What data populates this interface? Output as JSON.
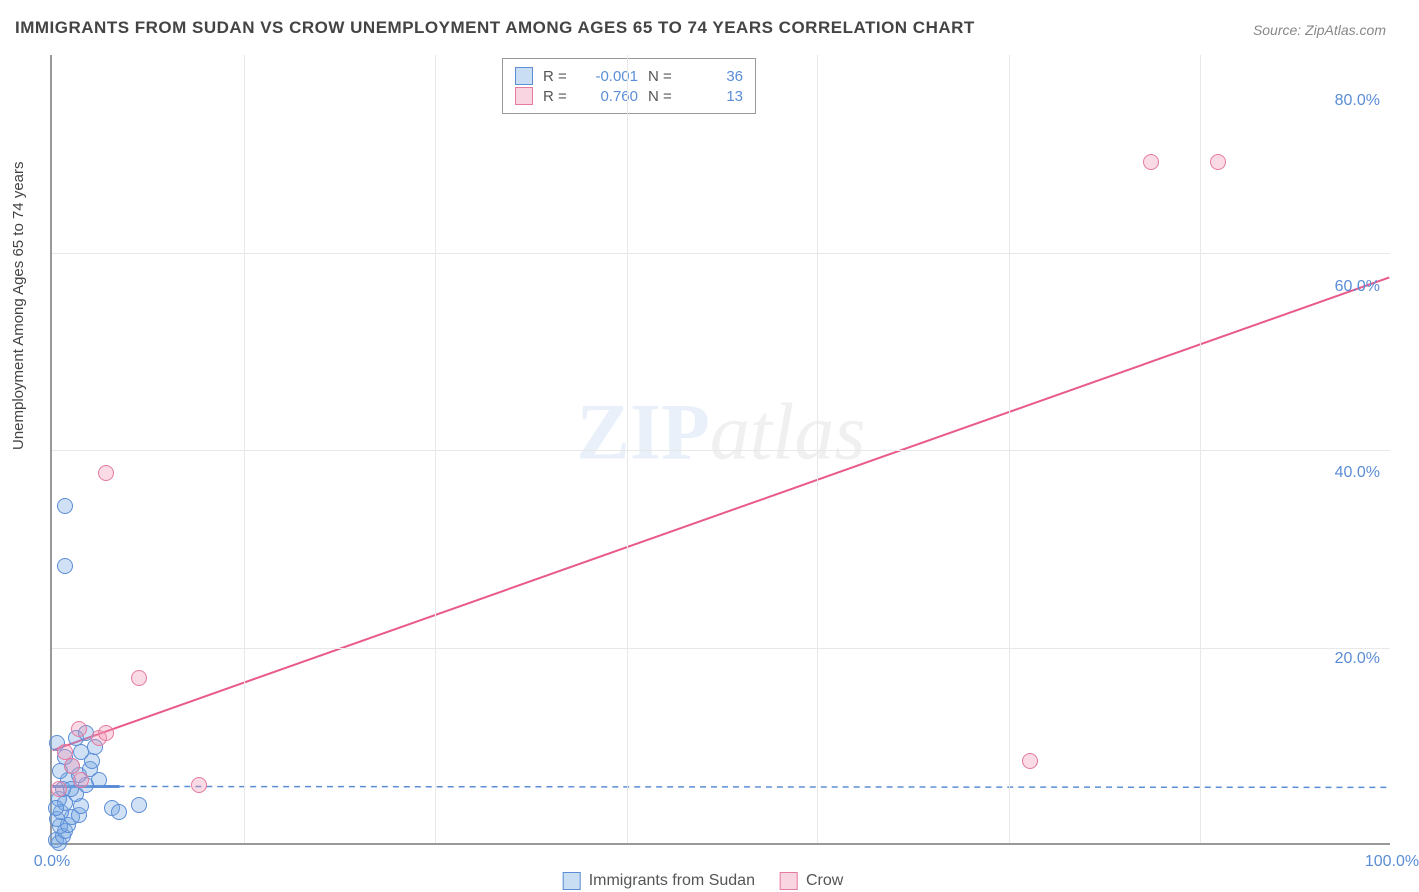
{
  "title": "IMMIGRANTS FROM SUDAN VS CROW UNEMPLOYMENT AMONG AGES 65 TO 74 YEARS CORRELATION CHART",
  "source_label": "Source: ZipAtlas.com",
  "ylabel": "Unemployment Among Ages 65 to 74 years",
  "watermark": {
    "part1": "ZIP",
    "part2": "atlas"
  },
  "chart": {
    "type": "scatter",
    "background_color": "#ffffff",
    "grid_color": "#e8e8e8",
    "axis_color": "#999999",
    "tick_label_color": "#5b8dd6",
    "tick_fontsize": 16,
    "xlim": [
      0,
      100
    ],
    "ylim": [
      0,
      85
    ],
    "xticks": [
      0,
      100
    ],
    "xtick_labels": [
      "0.0%",
      "100.0%"
    ],
    "yticks": [
      20,
      40,
      60,
      80
    ],
    "ytick_labels": [
      "20.0%",
      "40.0%",
      "60.0%",
      "80.0%"
    ],
    "x_gridlines_minor": [
      14.3,
      28.6,
      42.9,
      57.1,
      71.4,
      85.7
    ],
    "y_gridlines": [
      21.25,
      42.5,
      63.75
    ]
  },
  "legend_top": {
    "rows": [
      {
        "swatch": "blue",
        "r_label": "R =",
        "r_value": "-0.001",
        "n_label": "N =",
        "n_value": "36"
      },
      {
        "swatch": "pink",
        "r_label": "R =",
        "r_value": "0.760",
        "n_label": "N =",
        "n_value": "13"
      }
    ]
  },
  "legend_bottom": {
    "items": [
      {
        "swatch": "blue",
        "label": "Immigrants from Sudan"
      },
      {
        "swatch": "pink",
        "label": "Crow"
      }
    ]
  },
  "series": [
    {
      "name": "Immigrants from Sudan",
      "color_fill": "rgba(120,170,225,0.35)",
      "color_stroke": "#5b8dd6",
      "marker_size": 16,
      "regression": {
        "type": "dashed",
        "color": "#5b8dd6",
        "width": 1.5,
        "dash": "6 5",
        "x1": 0,
        "y1": 6.1,
        "x2": 100,
        "y2": 6.0,
        "solid_segment": {
          "x1": 0,
          "y1": 6.1,
          "x2": 5,
          "y2": 6.1
        }
      },
      "points": [
        {
          "x": 0.3,
          "y": 0.5
        },
        {
          "x": 0.5,
          "y": 0.2
        },
        {
          "x": 0.8,
          "y": 1.0
        },
        {
          "x": 1.0,
          "y": 1.5
        },
        {
          "x": 0.6,
          "y": 2.0
        },
        {
          "x": 1.2,
          "y": 2.2
        },
        {
          "x": 0.4,
          "y": 2.8
        },
        {
          "x": 1.5,
          "y": 3.0
        },
        {
          "x": 0.7,
          "y": 3.5
        },
        {
          "x": 2.0,
          "y": 3.2
        },
        {
          "x": 2.2,
          "y": 4.2
        },
        {
          "x": 1.0,
          "y": 4.5
        },
        {
          "x": 0.5,
          "y": 5.0
        },
        {
          "x": 1.8,
          "y": 5.5
        },
        {
          "x": 0.8,
          "y": 6.0
        },
        {
          "x": 2.5,
          "y": 6.5
        },
        {
          "x": 1.2,
          "y": 7.0
        },
        {
          "x": 2.0,
          "y": 7.5
        },
        {
          "x": 0.6,
          "y": 8.0
        },
        {
          "x": 1.5,
          "y": 8.5
        },
        {
          "x": 2.8,
          "y": 8.2
        },
        {
          "x": 3.0,
          "y": 9.0
        },
        {
          "x": 1.0,
          "y": 9.5
        },
        {
          "x": 2.2,
          "y": 10.0
        },
        {
          "x": 3.2,
          "y": 10.5
        },
        {
          "x": 0.4,
          "y": 11.0
        },
        {
          "x": 1.8,
          "y": 11.5
        },
        {
          "x": 2.5,
          "y": 12.0
        },
        {
          "x": 4.5,
          "y": 4.0
        },
        {
          "x": 5.0,
          "y": 3.5
        },
        {
          "x": 6.5,
          "y": 4.3
        },
        {
          "x": 1.0,
          "y": 30.0
        },
        {
          "x": 1.0,
          "y": 36.5
        },
        {
          "x": 0.3,
          "y": 4.0
        },
        {
          "x": 1.4,
          "y": 6.0
        },
        {
          "x": 3.5,
          "y": 7.0
        }
      ]
    },
    {
      "name": "Crow",
      "color_fill": "rgba(240,150,180,0.35)",
      "color_stroke": "#e57ba0",
      "marker_size": 16,
      "regression": {
        "type": "solid",
        "color": "#e85a8b",
        "width": 2,
        "x1": 0,
        "y1": 10.0,
        "x2": 100,
        "y2": 61.0
      },
      "points": [
        {
          "x": 0.5,
          "y": 6.0
        },
        {
          "x": 2.2,
          "y": 7.0
        },
        {
          "x": 1.0,
          "y": 10.0
        },
        {
          "x": 2.0,
          "y": 12.5
        },
        {
          "x": 3.5,
          "y": 11.5
        },
        {
          "x": 4.0,
          "y": 12.0
        },
        {
          "x": 6.5,
          "y": 18.0
        },
        {
          "x": 11.0,
          "y": 6.5
        },
        {
          "x": 4.0,
          "y": 40.0
        },
        {
          "x": 73.0,
          "y": 9.0
        },
        {
          "x": 82.0,
          "y": 73.5
        },
        {
          "x": 87.0,
          "y": 73.5
        },
        {
          "x": 1.5,
          "y": 8.5
        }
      ]
    }
  ]
}
